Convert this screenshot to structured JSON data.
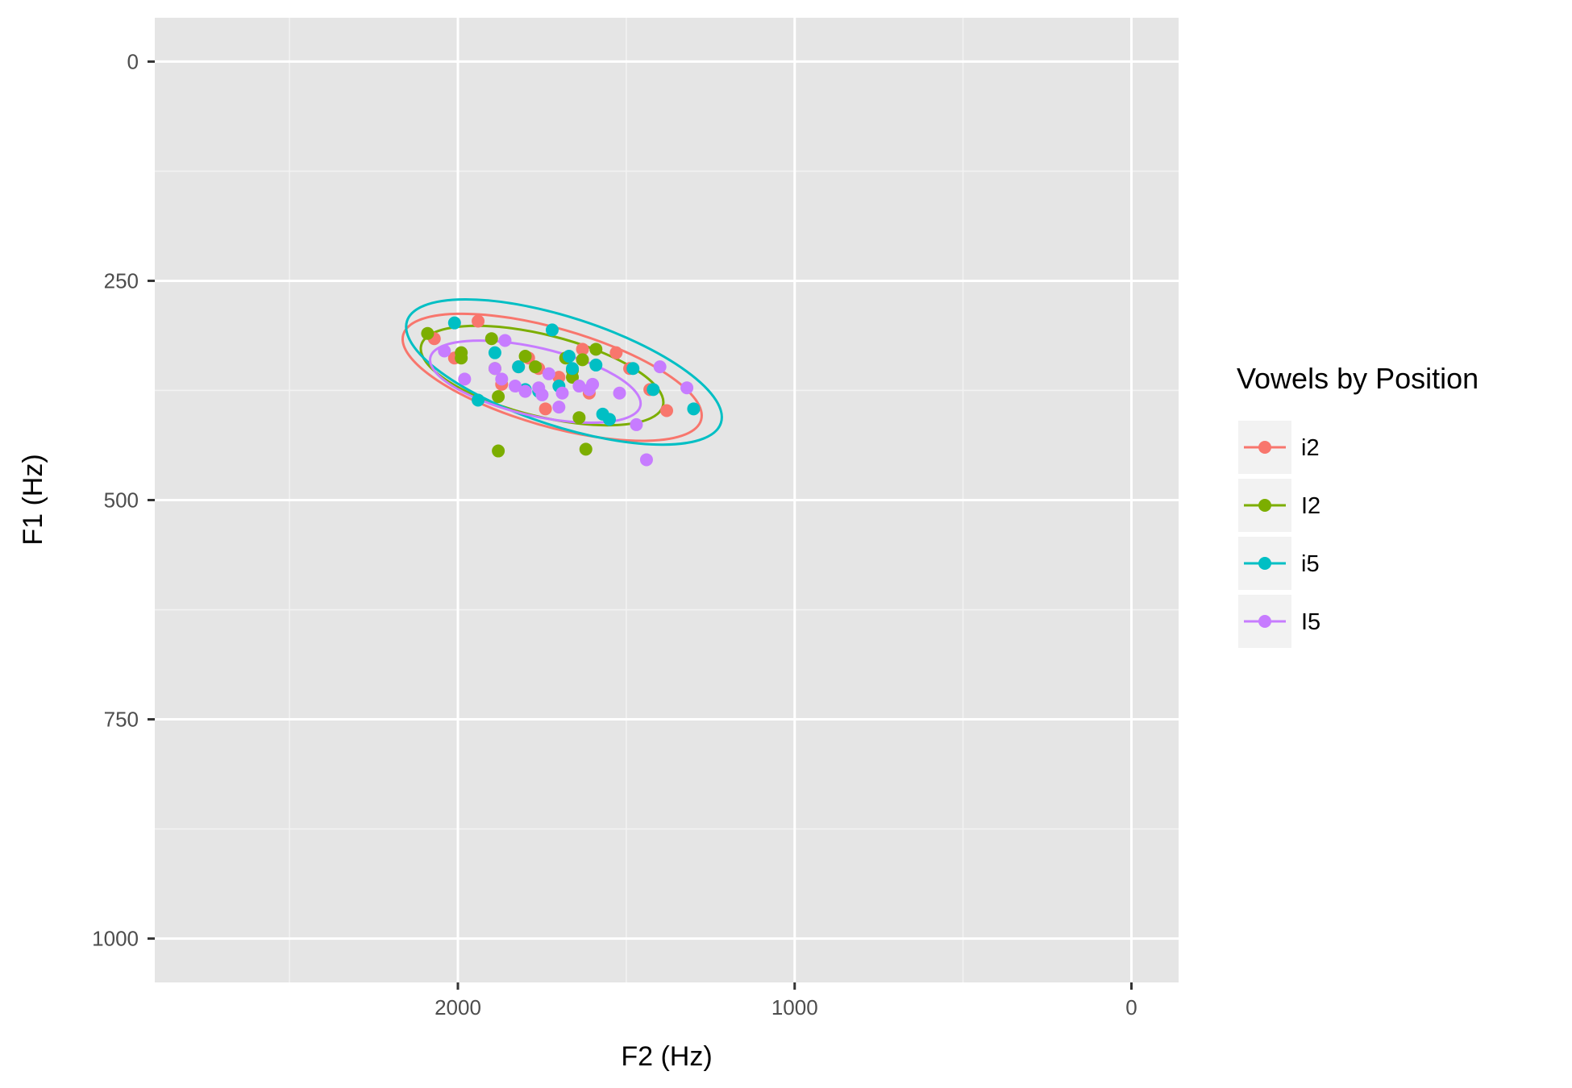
{
  "chart_data": {
    "type": "scatter",
    "title": "",
    "xlabel": "F2 (Hz)",
    "ylabel": "F1 (Hz)",
    "xlim": [
      2900,
      -140
    ],
    "ylim": [
      -50,
      1050
    ],
    "x_reversed": true,
    "y_reversed": true,
    "x_ticks": [
      2000,
      1000,
      0
    ],
    "x_minor_ticks": [
      2500,
      1500,
      500
    ],
    "y_ticks": [
      0,
      250,
      500,
      750,
      1000
    ],
    "y_minor_ticks": [
      125,
      375,
      625,
      875
    ],
    "grid": true,
    "ellipses": true,
    "legend": {
      "title": "Vowels by Position",
      "position": "right"
    },
    "series": [
      {
        "name": "i2",
        "color": "#F8766D",
        "ellipse": {
          "cx": 1720,
          "cy": 360,
          "rx": 460,
          "ry": 36,
          "angle": 16
        },
        "points": [
          [
            2070,
            316
          ],
          [
            1940,
            296
          ],
          [
            2010,
            338
          ],
          [
            1790,
            338
          ],
          [
            1760,
            350
          ],
          [
            1630,
            328
          ],
          [
            1530,
            332
          ],
          [
            1490,
            350
          ],
          [
            1430,
            374
          ],
          [
            1380,
            398
          ],
          [
            1610,
            378
          ],
          [
            1740,
            396
          ],
          [
            1700,
            360
          ],
          [
            1870,
            368
          ],
          [
            1820,
            348
          ]
        ]
      },
      {
        "name": "I2",
        "color": "#7CAE00",
        "ellipse": {
          "cx": 1750,
          "cy": 358,
          "rx": 370,
          "ry": 30,
          "angle": 14
        },
        "points": [
          [
            2090,
            310
          ],
          [
            1990,
            332
          ],
          [
            1990,
            338
          ],
          [
            1900,
            316
          ],
          [
            1890,
            350
          ],
          [
            1800,
            336
          ],
          [
            1770,
            348
          ],
          [
            1680,
            338
          ],
          [
            1660,
            352
          ],
          [
            1630,
            340
          ],
          [
            1590,
            328
          ],
          [
            1880,
            382
          ],
          [
            1880,
            444
          ],
          [
            1620,
            442
          ],
          [
            1640,
            406
          ],
          [
            1660,
            360
          ]
        ]
      },
      {
        "name": "i5",
        "color": "#00BFC4",
        "ellipse": {
          "cx": 1685,
          "cy": 354,
          "rx": 490,
          "ry": 40,
          "angle": 18
        },
        "points": [
          [
            2010,
            298
          ],
          [
            1890,
            332
          ],
          [
            1820,
            348
          ],
          [
            1720,
            306
          ],
          [
            1670,
            336
          ],
          [
            1660,
            350
          ],
          [
            1590,
            346
          ],
          [
            1480,
            350
          ],
          [
            1420,
            374
          ],
          [
            1300,
            396
          ],
          [
            1800,
            374
          ],
          [
            1570,
            402
          ],
          [
            1550,
            408
          ],
          [
            1940,
            386
          ],
          [
            1700,
            370
          ],
          [
            1760,
            376
          ]
        ]
      },
      {
        "name": "I5",
        "color": "#C77CFF",
        "ellipse": {
          "cx": 1770,
          "cy": 365,
          "rx": 320,
          "ry": 25,
          "angle": 13
        },
        "points": [
          [
            2040,
            330
          ],
          [
            1980,
            362
          ],
          [
            1860,
            318
          ],
          [
            1890,
            350
          ],
          [
            1830,
            370
          ],
          [
            1870,
            362
          ],
          [
            1750,
            380
          ],
          [
            1730,
            356
          ],
          [
            1690,
            378
          ],
          [
            1640,
            370
          ],
          [
            1610,
            374
          ],
          [
            1600,
            368
          ],
          [
            1520,
            378
          ],
          [
            1470,
            414
          ],
          [
            1400,
            348
          ],
          [
            1320,
            372
          ],
          [
            1440,
            454
          ],
          [
            1700,
            394
          ],
          [
            1760,
            372
          ],
          [
            1800,
            376
          ]
        ]
      }
    ]
  }
}
